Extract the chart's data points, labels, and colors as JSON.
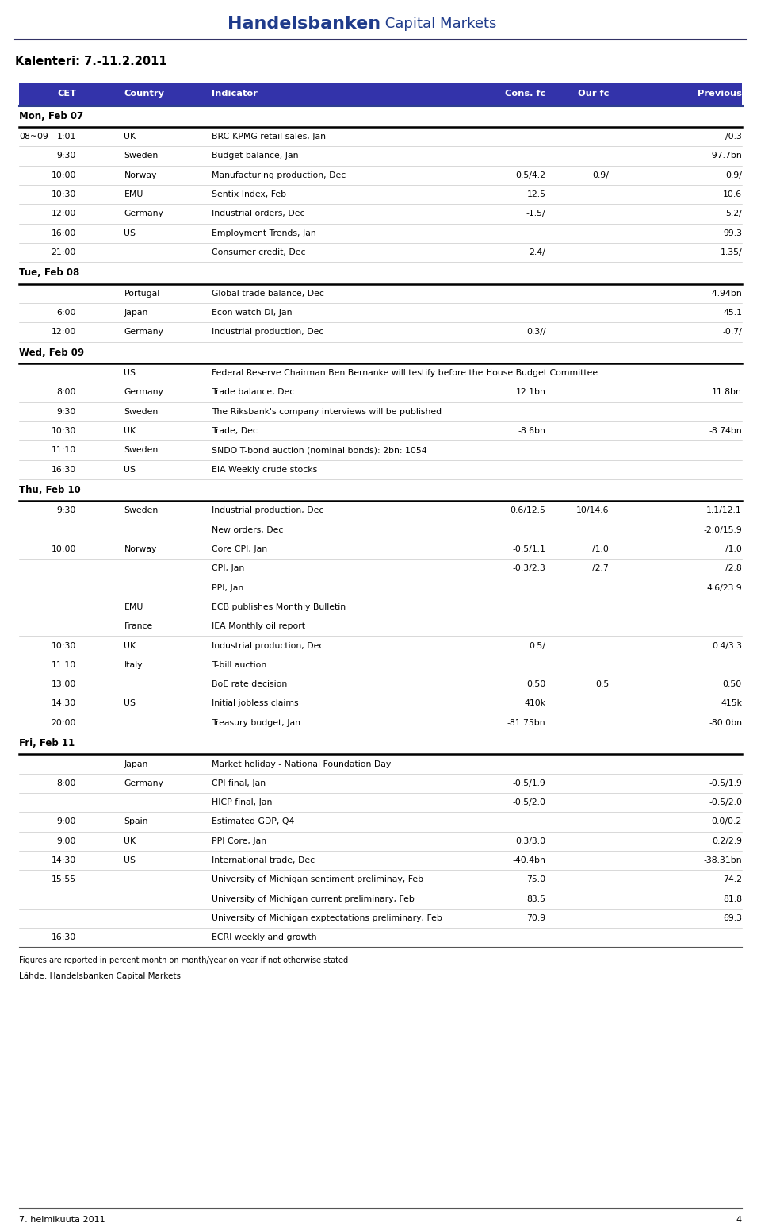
{
  "title_bold": "Handelsbanken",
  "title_light": " Capital Markets",
  "subtitle": "Kalenteri: 7.-11.2.2011",
  "header_bg": "#3333AA",
  "header_text_color": "#FFFFFF",
  "header_cols": [
    "",
    "CET",
    "Country",
    "Indicator",
    "Cons. fc",
    "Our fc",
    "Previous"
  ],
  "footer_text1": "Figures are reported in percent month on month/year on year if not otherwise stated",
  "footer_text2": "Lähde: Handelsbanken Capital Markets",
  "bottom_left": "7. helmikuuta 2011",
  "bottom_right": "4",
  "rows": [
    {
      "type": "dayheader",
      "label": "Mon, Feb 07"
    },
    {
      "type": "data",
      "col0": "08~09",
      "cet": "1:01",
      "country": "UK",
      "indicator": "BRC-KPMG retail sales, Jan",
      "cons": "",
      "ourfc": "",
      "prev": "/0.3"
    },
    {
      "type": "data",
      "col0": "",
      "cet": "9:30",
      "country": "Sweden",
      "indicator": "Budget balance, Jan",
      "cons": "",
      "ourfc": "",
      "prev": "-97.7bn"
    },
    {
      "type": "data",
      "col0": "",
      "cet": "10:00",
      "country": "Norway",
      "indicator": "Manufacturing production, Dec",
      "cons": "0.5/4.2",
      "ourfc": "0.9/",
      "prev": "0.9/"
    },
    {
      "type": "data",
      "col0": "",
      "cet": "10:30",
      "country": "EMU",
      "indicator": "Sentix Index, Feb",
      "cons": "12.5",
      "ourfc": "",
      "prev": "10.6"
    },
    {
      "type": "data",
      "col0": "",
      "cet": "12:00",
      "country": "Germany",
      "indicator": "Industrial orders, Dec",
      "cons": "-1.5/",
      "ourfc": "",
      "prev": "5.2/"
    },
    {
      "type": "data",
      "col0": "",
      "cet": "16:00",
      "country": "US",
      "indicator": "Employment Trends, Jan",
      "cons": "",
      "ourfc": "",
      "prev": "99.3"
    },
    {
      "type": "data",
      "col0": "",
      "cet": "21:00",
      "country": "",
      "indicator": "Consumer credit, Dec",
      "cons": "2.4/",
      "ourfc": "",
      "prev": "1.35/"
    },
    {
      "type": "dayheader",
      "label": "Tue, Feb 08"
    },
    {
      "type": "data",
      "col0": "",
      "cet": "",
      "country": "Portugal",
      "indicator": "Global trade balance, Dec",
      "cons": "",
      "ourfc": "",
      "prev": "-4.94bn"
    },
    {
      "type": "data",
      "col0": "",
      "cet": "6:00",
      "country": "Japan",
      "indicator": "Econ watch DI, Jan",
      "cons": "",
      "ourfc": "",
      "prev": "45.1"
    },
    {
      "type": "data",
      "col0": "",
      "cet": "12:00",
      "country": "Germany",
      "indicator": "Industrial production, Dec",
      "cons": "0.3//",
      "ourfc": "",
      "prev": "-0.7/"
    },
    {
      "type": "dayheader",
      "label": "Wed, Feb 09"
    },
    {
      "type": "data",
      "col0": "",
      "cet": "",
      "country": "US",
      "indicator": "Federal Reserve Chairman Ben Bernanke will testify before the House Budget Committee",
      "cons": "",
      "ourfc": "",
      "prev": ""
    },
    {
      "type": "data",
      "col0": "",
      "cet": "8:00",
      "country": "Germany",
      "indicator": "Trade balance, Dec",
      "cons": "12.1bn",
      "ourfc": "",
      "prev": "11.8bn"
    },
    {
      "type": "data",
      "col0": "",
      "cet": "9:30",
      "country": "Sweden",
      "indicator": "The Riksbank's company interviews will be published",
      "cons": "",
      "ourfc": "",
      "prev": ""
    },
    {
      "type": "data",
      "col0": "",
      "cet": "10:30",
      "country": "UK",
      "indicator": "Trade, Dec",
      "cons": "-8.6bn",
      "ourfc": "",
      "prev": "-8.74bn"
    },
    {
      "type": "data",
      "col0": "",
      "cet": "11:10",
      "country": "Sweden",
      "indicator": "SNDO T-bond auction (nominal bonds): 2bn: 1054",
      "cons": "",
      "ourfc": "",
      "prev": ""
    },
    {
      "type": "data",
      "col0": "",
      "cet": "16:30",
      "country": "US",
      "indicator": "EIA Weekly crude stocks",
      "cons": "",
      "ourfc": "",
      "prev": ""
    },
    {
      "type": "dayheader",
      "label": "Thu, Feb 10"
    },
    {
      "type": "data",
      "col0": "",
      "cet": "9:30",
      "country": "Sweden",
      "indicator": "Industrial production, Dec",
      "cons": "0.6/12.5",
      "ourfc": "10/14.6",
      "prev": "1.1/12.1"
    },
    {
      "type": "data",
      "col0": "",
      "cet": "",
      "country": "",
      "indicator": "New orders, Dec",
      "cons": "",
      "ourfc": "",
      "prev": "-2.0/15.9"
    },
    {
      "type": "data",
      "col0": "",
      "cet": "10:00",
      "country": "Norway",
      "indicator": "Core CPI, Jan",
      "cons": "-0.5/1.1",
      "ourfc": "/1.0",
      "prev": "/1.0"
    },
    {
      "type": "data",
      "col0": "",
      "cet": "",
      "country": "",
      "indicator": "CPI, Jan",
      "cons": "-0.3/2.3",
      "ourfc": "/2.7",
      "prev": "/2.8"
    },
    {
      "type": "data",
      "col0": "",
      "cet": "",
      "country": "",
      "indicator": "PPI, Jan",
      "cons": "",
      "ourfc": "",
      "prev": "4.6/23.9"
    },
    {
      "type": "data",
      "col0": "",
      "cet": "",
      "country": "EMU",
      "indicator": "ECB publishes Monthly Bulletin",
      "cons": "",
      "ourfc": "",
      "prev": ""
    },
    {
      "type": "data",
      "col0": "",
      "cet": "",
      "country": "France",
      "indicator": "IEA Monthly oil report",
      "cons": "",
      "ourfc": "",
      "prev": ""
    },
    {
      "type": "data",
      "col0": "",
      "cet": "10:30",
      "country": "UK",
      "indicator": "Industrial production, Dec",
      "cons": "0.5/",
      "ourfc": "",
      "prev": "0.4/3.3"
    },
    {
      "type": "data",
      "col0": "",
      "cet": "11:10",
      "country": "Italy",
      "indicator": "T-bill auction",
      "cons": "",
      "ourfc": "",
      "prev": ""
    },
    {
      "type": "data",
      "col0": "",
      "cet": "13:00",
      "country": "",
      "indicator": "BoE rate decision",
      "cons": "0.50",
      "ourfc": "0.5",
      "prev": "0.50"
    },
    {
      "type": "data",
      "col0": "",
      "cet": "14:30",
      "country": "US",
      "indicator": "Initial jobless claims",
      "cons": "410k",
      "ourfc": "",
      "prev": "415k"
    },
    {
      "type": "data",
      "col0": "",
      "cet": "20:00",
      "country": "",
      "indicator": "Treasury budget, Jan",
      "cons": "-81.75bn",
      "ourfc": "",
      "prev": "-80.0bn"
    },
    {
      "type": "dayheader",
      "label": "Fri, Feb 11"
    },
    {
      "type": "data",
      "col0": "",
      "cet": "",
      "country": "Japan",
      "indicator": "Market holiday - National Foundation Day",
      "cons": "",
      "ourfc": "",
      "prev": ""
    },
    {
      "type": "data",
      "col0": "",
      "cet": "8:00",
      "country": "Germany",
      "indicator": "CPI final, Jan",
      "cons": "-0.5/1.9",
      "ourfc": "",
      "prev": "-0.5/1.9"
    },
    {
      "type": "data",
      "col0": "",
      "cet": "",
      "country": "",
      "indicator": "HICP final, Jan",
      "cons": "-0.5/2.0",
      "ourfc": "",
      "prev": "-0.5/2.0"
    },
    {
      "type": "data",
      "col0": "",
      "cet": "9:00",
      "country": "Spain",
      "indicator": "Estimated GDP, Q4",
      "cons": "",
      "ourfc": "",
      "prev": "0.0/0.2"
    },
    {
      "type": "data",
      "col0": "",
      "cet": "9:00",
      "country": "UK",
      "indicator": "PPI Core, Jan",
      "cons": "0.3/3.0",
      "ourfc": "",
      "prev": "0.2/2.9"
    },
    {
      "type": "data",
      "col0": "",
      "cet": "14:30",
      "country": "US",
      "indicator": "International trade, Dec",
      "cons": "-40.4bn",
      "ourfc": "",
      "prev": "-38.31bn"
    },
    {
      "type": "data",
      "col0": "",
      "cet": "15:55",
      "country": "",
      "indicator": "University of Michigan sentiment preliminay, Feb",
      "cons": "75.0",
      "ourfc": "",
      "prev": "74.2"
    },
    {
      "type": "data",
      "col0": "",
      "cet": "",
      "country": "",
      "indicator": "University of Michigan current preliminary, Feb",
      "cons": "83.5",
      "ourfc": "",
      "prev": "81.8"
    },
    {
      "type": "data",
      "col0": "",
      "cet": "",
      "country": "",
      "indicator": "University of Michigan exptectations preliminary, Feb",
      "cons": "70.9",
      "ourfc": "",
      "prev": "69.3"
    },
    {
      "type": "data",
      "col0": "",
      "cet": "16:30",
      "country": "",
      "indicator": "ECRI weekly and growth",
      "cons": "",
      "ourfc": "",
      "prev": ""
    }
  ]
}
